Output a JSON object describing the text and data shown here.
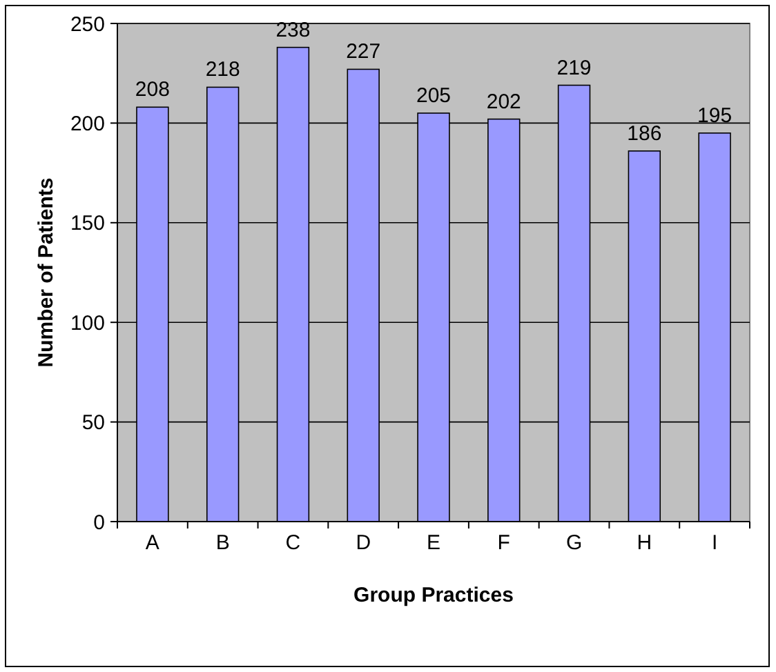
{
  "chart_data": {
    "type": "bar",
    "xlabel": "Group Practices",
    "ylabel": "Number of Patients",
    "categories": [
      "A",
      "B",
      "C",
      "D",
      "E",
      "F",
      "G",
      "H",
      "I"
    ],
    "values": [
      208,
      218,
      238,
      227,
      205,
      202,
      219,
      186,
      195
    ],
    "color": "#9999ff",
    "ylim": [
      0,
      250
    ],
    "yticks": [
      0,
      50,
      100,
      150,
      200,
      250
    ],
    "grid": "y",
    "data_labels": true
  }
}
